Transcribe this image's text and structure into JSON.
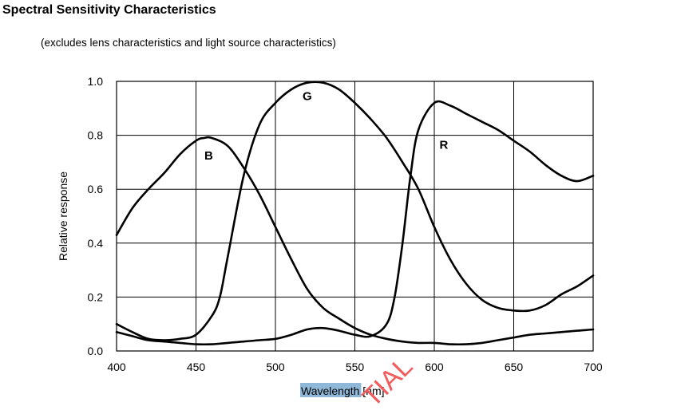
{
  "page": {
    "title": "Spectral Sensitivity Characteristics",
    "subtitle": "(excludes lens characteristics and light source characteristics)"
  },
  "watermark": "TIAL",
  "colors": {
    "line": "#000000",
    "grid": "#000000",
    "xlabel_highlight": "#8fb8d8",
    "watermark": "#f25c5c"
  },
  "chart_data": {
    "type": "line",
    "title": "Spectral Sensitivity Characteristics",
    "subtitle": "(excludes lens characteristics and light source characteristics)",
    "xlabel": "Wavelength [nm]",
    "xlabel_highlighted": "Wavelength",
    "xlabel_rest": " [nm]",
    "ylabel": "Relative response",
    "xlim": [
      400,
      700
    ],
    "ylim": [
      0.0,
      1.0
    ],
    "xticks": [
      400,
      450,
      500,
      550,
      600,
      650,
      700
    ],
    "yticks": [
      "0.0",
      "0.2",
      "0.4",
      "0.6",
      "0.8",
      "1.0"
    ],
    "grid": true,
    "legend": "none",
    "series": [
      {
        "name": "B",
        "label_at": [
          458,
          0.71
        ],
        "x": [
          400,
          410,
          420,
          430,
          440,
          450,
          455,
          460,
          470,
          480,
          490,
          500,
          510,
          520,
          530,
          540,
          550,
          560,
          570,
          580,
          590,
          600,
          610,
          620,
          630,
          640,
          650,
          660,
          670,
          680,
          690,
          700
        ],
        "y": [
          0.43,
          0.53,
          0.6,
          0.66,
          0.73,
          0.78,
          0.79,
          0.79,
          0.76,
          0.68,
          0.58,
          0.46,
          0.34,
          0.23,
          0.16,
          0.12,
          0.085,
          0.06,
          0.045,
          0.035,
          0.03,
          0.03,
          0.025,
          0.025,
          0.03,
          0.04,
          0.05,
          0.06,
          0.065,
          0.07,
          0.075,
          0.08
        ]
      },
      {
        "name": "G",
        "label_at": [
          520,
          0.93
        ],
        "x": [
          400,
          410,
          420,
          430,
          440,
          450,
          460,
          465,
          470,
          480,
          490,
          500,
          510,
          520,
          530,
          540,
          550,
          560,
          570,
          580,
          590,
          600,
          610,
          620,
          630,
          640,
          650,
          660,
          670,
          680,
          690,
          700
        ],
        "y": [
          0.1,
          0.07,
          0.045,
          0.04,
          0.045,
          0.06,
          0.13,
          0.2,
          0.35,
          0.65,
          0.84,
          0.92,
          0.97,
          0.995,
          0.995,
          0.97,
          0.92,
          0.86,
          0.79,
          0.7,
          0.6,
          0.46,
          0.34,
          0.25,
          0.19,
          0.16,
          0.15,
          0.15,
          0.17,
          0.21,
          0.24,
          0.28
        ]
      },
      {
        "name": "R",
        "label_at": [
          606,
          0.75
        ],
        "x": [
          400,
          410,
          420,
          430,
          440,
          450,
          460,
          470,
          480,
          490,
          500,
          510,
          520,
          530,
          540,
          550,
          560,
          570,
          575,
          580,
          585,
          590,
          600,
          610,
          620,
          630,
          640,
          650,
          660,
          670,
          680,
          690,
          700
        ],
        "y": [
          0.07,
          0.055,
          0.04,
          0.035,
          0.03,
          0.025,
          0.025,
          0.03,
          0.035,
          0.04,
          0.045,
          0.06,
          0.08,
          0.085,
          0.075,
          0.06,
          0.055,
          0.1,
          0.2,
          0.4,
          0.65,
          0.82,
          0.92,
          0.91,
          0.88,
          0.85,
          0.82,
          0.78,
          0.74,
          0.69,
          0.65,
          0.63,
          0.65
        ]
      }
    ]
  }
}
